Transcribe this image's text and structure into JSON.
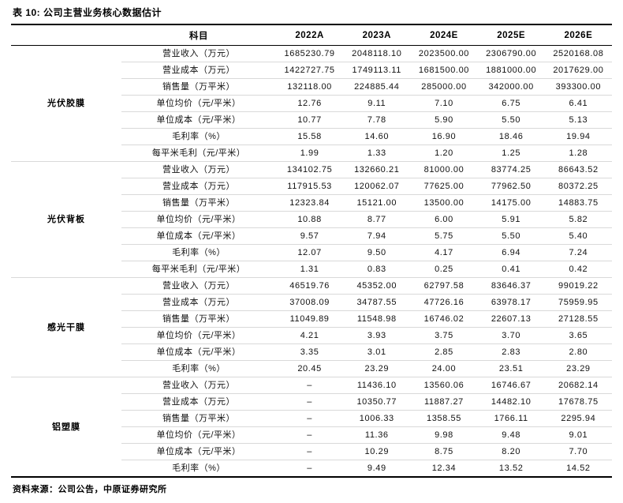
{
  "page": {
    "title": "表 10:  公司主营业务核心数据估计",
    "source_note": "资料来源：公司公告，中原证券研究所"
  },
  "colors": {
    "text": "#111111",
    "heavy_rule": "#000000",
    "light_rule": "#d9d9d9",
    "background": "#ffffff"
  },
  "table": {
    "header": [
      "",
      "科目",
      "2022A",
      "2023A",
      "2024E",
      "2025E",
      "2026E"
    ],
    "groups": [
      {
        "name": "光伏胶膜",
        "rows": [
          {
            "label": "营业收入（万元）",
            "values": [
              "1685230.79",
              "2048118.10",
              "2023500.00",
              "2306790.00",
              "2520168.08"
            ]
          },
          {
            "label": "营业成本（万元）",
            "values": [
              "1422727.75",
              "1749113.11",
              "1681500.00",
              "1881000.00",
              "2017629.00"
            ]
          },
          {
            "label": "销售量（万平米）",
            "values": [
              "132118.00",
              "224885.44",
              "285000.00",
              "342000.00",
              "393300.00"
            ]
          },
          {
            "label": "单位均价（元/平米）",
            "values": [
              "12.76",
              "9.11",
              "7.10",
              "6.75",
              "6.41"
            ]
          },
          {
            "label": "单位成本（元/平米）",
            "values": [
              "10.77",
              "7.78",
              "5.90",
              "5.50",
              "5.13"
            ]
          },
          {
            "label": "毛利率（%）",
            "values": [
              "15.58",
              "14.60",
              "16.90",
              "18.46",
              "19.94"
            ]
          },
          {
            "label": "每平米毛利（元/平米）",
            "values": [
              "1.99",
              "1.33",
              "1.20",
              "1.25",
              "1.28"
            ]
          }
        ]
      },
      {
        "name": "光伏背板",
        "rows": [
          {
            "label": "营业收入（万元）",
            "values": [
              "134102.75",
              "132660.21",
              "81000.00",
              "83774.25",
              "86643.52"
            ]
          },
          {
            "label": "营业成本（万元）",
            "values": [
              "117915.53",
              "120062.07",
              "77625.00",
              "77962.50",
              "80372.25"
            ]
          },
          {
            "label": "销售量（万平米）",
            "values": [
              "12323.84",
              "15121.00",
              "13500.00",
              "14175.00",
              "14883.75"
            ]
          },
          {
            "label": "单位均价（元/平米）",
            "values": [
              "10.88",
              "8.77",
              "6.00",
              "5.91",
              "5.82"
            ]
          },
          {
            "label": "单位成本（元/平米）",
            "values": [
              "9.57",
              "7.94",
              "5.75",
              "5.50",
              "5.40"
            ]
          },
          {
            "label": "毛利率（%）",
            "values": [
              "12.07",
              "9.50",
              "4.17",
              "6.94",
              "7.24"
            ]
          },
          {
            "label": "每平米毛利（元/平米）",
            "values": [
              "1.31",
              "0.83",
              "0.25",
              "0.41",
              "0.42"
            ]
          }
        ]
      },
      {
        "name": "感光干膜",
        "rows": [
          {
            "label": "营业收入（万元）",
            "values": [
              "46519.76",
              "45352.00",
              "62797.58",
              "83646.37",
              "99019.22"
            ]
          },
          {
            "label": "营业成本（万元）",
            "values": [
              "37008.09",
              "34787.55",
              "47726.16",
              "63978.17",
              "75959.95"
            ]
          },
          {
            "label": "销售量（万平米）",
            "values": [
              "11049.89",
              "11548.98",
              "16746.02",
              "22607.13",
              "27128.55"
            ]
          },
          {
            "label": "单位均价（元/平米）",
            "values": [
              "4.21",
              "3.93",
              "3.75",
              "3.70",
              "3.65"
            ]
          },
          {
            "label": "单位成本（元/平米）",
            "values": [
              "3.35",
              "3.01",
              "2.85",
              "2.83",
              "2.80"
            ]
          },
          {
            "label": "毛利率（%）",
            "values": [
              "20.45",
              "23.29",
              "24.00",
              "23.51",
              "23.29"
            ]
          }
        ]
      },
      {
        "name": "铝塑膜",
        "rows": [
          {
            "label": "营业收入（万元）",
            "values": [
              "–",
              "11436.10",
              "13560.06",
              "16746.67",
              "20682.14"
            ]
          },
          {
            "label": "营业成本（万元）",
            "values": [
              "–",
              "10350.77",
              "11887.27",
              "14482.10",
              "17678.75"
            ]
          },
          {
            "label": "销售量（万平米）",
            "values": [
              "–",
              "1006.33",
              "1358.55",
              "1766.11",
              "2295.94"
            ]
          },
          {
            "label": "单位均价（元/平米）",
            "values": [
              "–",
              "11.36",
              "9.98",
              "9.48",
              "9.01"
            ]
          },
          {
            "label": "单位成本（元/平米）",
            "values": [
              "–",
              "10.29",
              "8.75",
              "8.20",
              "7.70"
            ]
          },
          {
            "label": "毛利率（%）",
            "values": [
              "–",
              "9.49",
              "12.34",
              "13.52",
              "14.52"
            ]
          }
        ]
      }
    ]
  }
}
